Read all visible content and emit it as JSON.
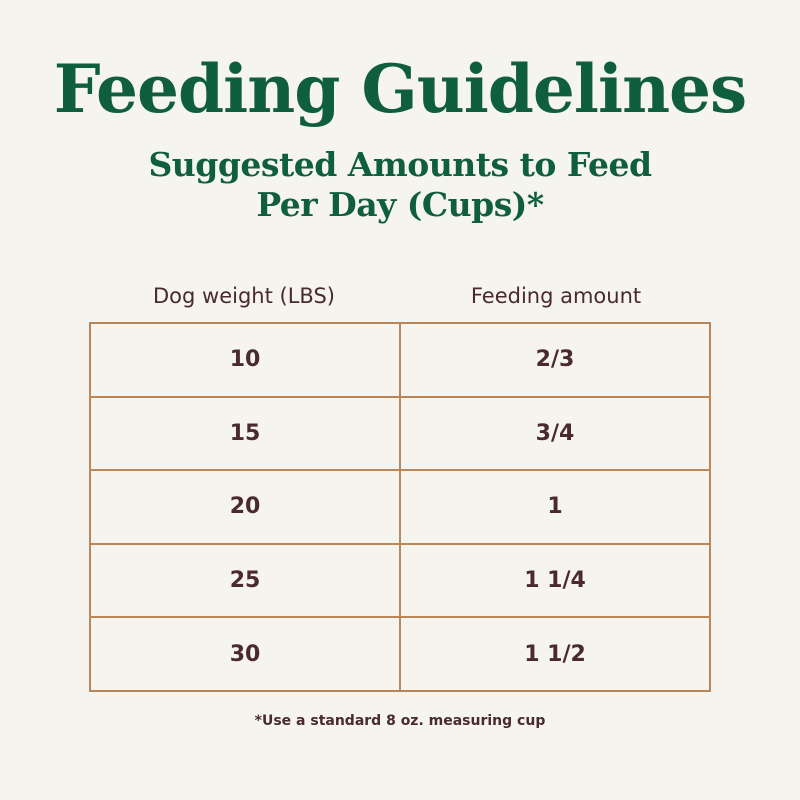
{
  "header": {
    "title": "Feeding Guidelines",
    "subtitle_line1": "Suggested Amounts to Feed",
    "subtitle_line2": "Per Day (Cups)*"
  },
  "table": {
    "columns": [
      "Dog weight (LBS)",
      "Feeding amount"
    ],
    "rows": [
      [
        "10",
        "2/3"
      ],
      [
        "15",
        "3/4"
      ],
      [
        "20",
        "1"
      ],
      [
        "25",
        "1 1/4"
      ],
      [
        "30",
        "1 1/2"
      ]
    ]
  },
  "footnote": "*Use a standard 8 oz. measuring cup"
}
